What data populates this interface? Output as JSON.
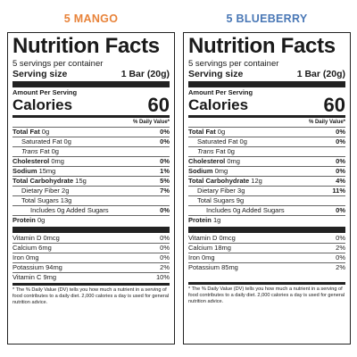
{
  "left": {
    "flavor": "5 MANGO",
    "title": "Nutrition Facts",
    "servings": "5 servings per container",
    "serving_size_label": "Serving size",
    "serving_size_value": "1 Bar (20g)",
    "amount_per_serving": "Amount Per Serving",
    "calories_label": "Calories",
    "calories_value": "60",
    "dv_header": "% Daily Value*",
    "rows": [
      {
        "label": "Total Fat",
        "amount": "0g",
        "dv": "0%"
      },
      {
        "label": "Saturated Fat",
        "amount": "0g",
        "dv": "0%"
      },
      {
        "label": "Trans",
        "amount": "Fat 0g",
        "dv": ""
      },
      {
        "label": "Cholesterol",
        "amount": "0mg",
        "dv": "0%"
      },
      {
        "label": "Sodium",
        "amount": "15mg",
        "dv": "1%"
      },
      {
        "label": "Total Carbohydrate",
        "amount": "15g",
        "dv": "5%"
      },
      {
        "label": "Dietary Fiber",
        "amount": "2g",
        "dv": "7%"
      },
      {
        "label": "Total Sugars",
        "amount": "13g",
        "dv": ""
      },
      {
        "label": "Includes",
        "amount": "0g Added Sugars",
        "dv": "0%"
      },
      {
        "label": "Protein",
        "amount": "0g",
        "dv": ""
      }
    ],
    "vitamins": [
      {
        "label": "Vitamin D 0mcg",
        "dv": "0%"
      },
      {
        "label": "Calcium 6mg",
        "dv": "0%"
      },
      {
        "label": "Iron 0mg",
        "dv": "0%"
      },
      {
        "label": "Potassium 94mg",
        "dv": "2%"
      },
      {
        "label": "Vitamin C 9mg",
        "dv": "10%"
      }
    ],
    "footnote": "* The % Daily Value (DV) tells you how much a nutrient in a serving of food contributes to a daily diet. 2,000 calories a day is used for general nutrition advice."
  },
  "right": {
    "flavor": "5 BLUEBERRY",
    "title": "Nutrition Facts",
    "servings": "5 servings per container",
    "serving_size_label": "Serving size",
    "serving_size_value": "1 Bar (20g)",
    "amount_per_serving": "Amount Per Serving",
    "calories_label": "Calories",
    "calories_value": "60",
    "dv_header": "% Daily Value*",
    "rows": [
      {
        "label": "Total Fat",
        "amount": "0g",
        "dv": "0%"
      },
      {
        "label": "Saturated Fat",
        "amount": "0g",
        "dv": "0%"
      },
      {
        "label": "Trans",
        "amount": "Fat 0g",
        "dv": ""
      },
      {
        "label": "Cholesterol",
        "amount": "0mg",
        "dv": "0%"
      },
      {
        "label": "Sodium",
        "amount": "0mg",
        "dv": "0%"
      },
      {
        "label": "Total Carbohydrate",
        "amount": "12g",
        "dv": "4%"
      },
      {
        "label": "Dietary Fiber",
        "amount": "3g",
        "dv": "11%"
      },
      {
        "label": "Total Sugars",
        "amount": "9g",
        "dv": ""
      },
      {
        "label": "Includes",
        "amount": "0g Added Sugars",
        "dv": "0%"
      },
      {
        "label": "Protein",
        "amount": "1g",
        "dv": ""
      }
    ],
    "vitamins": [
      {
        "label": "Vitamin D 0mcg",
        "dv": "0%"
      },
      {
        "label": "Calcium 18mg",
        "dv": "2%"
      },
      {
        "label": "Iron 0mg",
        "dv": "0%"
      },
      {
        "label": "Potassium 85mg",
        "dv": "2%"
      }
    ],
    "footnote": "* The % Daily Value (DV) tells you how much a nutrient in a serving of food contributes to a daily diet. 2,000 calories a day is used for general nutrition advice."
  },
  "colors": {
    "mango": "#e8833a",
    "blueberry": "#4a78b6"
  }
}
